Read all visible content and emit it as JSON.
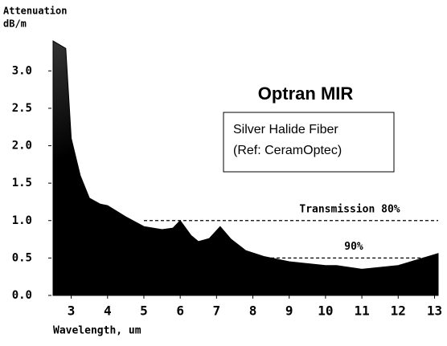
{
  "chart_data": {
    "type": "area",
    "title": "Optran MIR",
    "subtitle": [
      "Silver Halide Fiber",
      "(Ref: CeramOptec)"
    ],
    "y_label": [
      "Attenuation",
      "dB/m"
    ],
    "x_label": "Wavelength, um",
    "x": [
      2.5,
      2.85,
      3.0,
      3.25,
      3.5,
      3.8,
      4.0,
      4.5,
      5.0,
      5.5,
      5.8,
      6.0,
      6.3,
      6.5,
      6.8,
      7.1,
      7.4,
      7.8,
      8.3,
      9.0,
      10.0,
      10.3,
      11.0,
      12.0,
      13.1
    ],
    "values": [
      3.4,
      3.3,
      2.1,
      1.6,
      1.3,
      1.22,
      1.2,
      1.05,
      0.92,
      0.88,
      0.9,
      1.0,
      0.8,
      0.72,
      0.76,
      0.92,
      0.75,
      0.6,
      0.52,
      0.45,
      0.4,
      0.4,
      0.35,
      0.4,
      0.56
    ],
    "color": "#000000",
    "xlim": [
      2.5,
      13.1
    ],
    "ylim": [
      0,
      3.4
    ],
    "xticks": [
      3,
      4,
      5,
      6,
      7,
      8,
      9,
      10,
      11,
      12,
      13
    ],
    "yticks": [
      {
        "value": 0,
        "label": "0.0"
      },
      0.5,
      {
        "value": 1,
        "label": "1.0"
      },
      1.5,
      {
        "value": 2,
        "label": "2.0"
      },
      2.5,
      {
        "value": 3,
        "label": "3.0"
      }
    ],
    "reference_lines": [
      {
        "value": 1,
        "x": [
          5,
          13.1
        ],
        "label": "Transmission 80%"
      },
      {
        "value": 0.5,
        "x": [
          8.5,
          13.1
        ],
        "label": "90%"
      }
    ]
  }
}
